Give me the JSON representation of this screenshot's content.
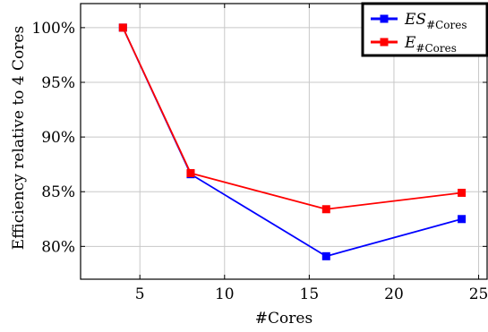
{
  "chart_data": {
    "type": "line",
    "xlabel": "#Cores",
    "ylabel": "Efficiency relative to 4 Cores",
    "xlim": [
      1.5,
      25.5
    ],
    "ylim": [
      77,
      102.2
    ],
    "xticks": [
      5,
      10,
      15,
      20,
      25
    ],
    "xtick_labels": [
      "5",
      "10",
      "15",
      "20",
      "25"
    ],
    "yticks": [
      80,
      85,
      90,
      95,
      100
    ],
    "ytick_labels": [
      "80%",
      "85%",
      "90%",
      "95%",
      "100%"
    ],
    "grid": true,
    "legend_position": "top-right",
    "series": [
      {
        "name": "ES",
        "name_subscript": "#Cores",
        "color": "#0000ff",
        "marker": "square",
        "x": [
          4,
          8,
          16,
          24
        ],
        "y": [
          100,
          86.6,
          79.1,
          82.5
        ]
      },
      {
        "name": "E",
        "name_subscript": "#Cores",
        "color": "#ff0000",
        "marker": "square",
        "x": [
          4,
          8,
          16,
          24
        ],
        "y": [
          100,
          86.7,
          83.4,
          84.9
        ]
      }
    ]
  }
}
